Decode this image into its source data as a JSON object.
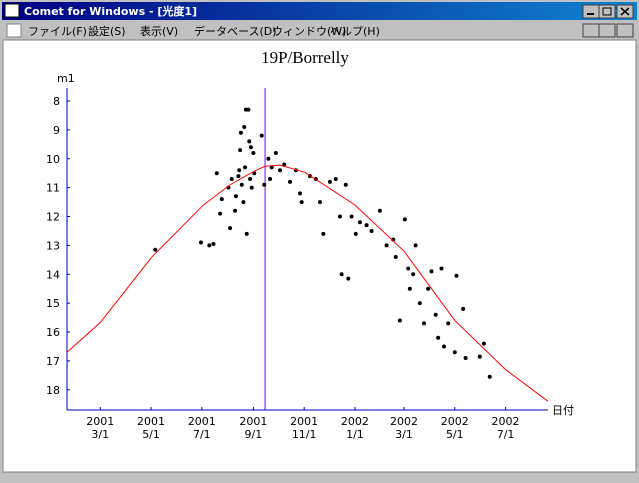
{
  "window": {
    "title": "Comet for Windows - [光度1]",
    "menu": [
      "ファイル(F)",
      "設定(S)",
      "表示(V)",
      "データベース(D)",
      "ウィンドウ(W)",
      "ヘルプ(H)"
    ]
  },
  "chart_data": {
    "type": "scatter",
    "title": "19P/Borrelly",
    "y_label": "m1",
    "x_label": "日付",
    "xlim": [
      "2001-01-20",
      "2002-08-21"
    ],
    "ylim": [
      18.7,
      7.55
    ],
    "yticks": [
      8,
      9,
      10,
      11,
      12,
      13,
      14,
      15,
      16,
      17,
      18
    ],
    "xticks": [
      {
        "value": "2001-03-01",
        "label": [
          "2001",
          "3/1"
        ]
      },
      {
        "value": "2001-05-01",
        "label": [
          "2001",
          "5/1"
        ]
      },
      {
        "value": "2001-07-01",
        "label": [
          "2001",
          "7/1"
        ]
      },
      {
        "value": "2001-09-01",
        "label": [
          "2001",
          "9/1"
        ]
      },
      {
        "value": "2001-11-01",
        "label": [
          "2001",
          "11/1"
        ]
      },
      {
        "value": "2002-01-01",
        "label": [
          "2002",
          "1/1"
        ]
      },
      {
        "value": "2002-03-01",
        "label": [
          "2002",
          "3/1"
        ]
      },
      {
        "value": "2002-05-01",
        "label": [
          "2002",
          "5/1"
        ]
      },
      {
        "value": "2002-07-01",
        "label": [
          "2002",
          "7/1"
        ]
      }
    ],
    "vline": {
      "x": "2001-09-15",
      "color": "#8000ff"
    },
    "axis_color": "#0000c0",
    "series": [
      {
        "type": "scatter",
        "color": "#000000",
        "x": [
          "2001-05-06",
          "2001-06-30",
          "2001-07-10",
          "2001-07-15",
          "2001-07-19",
          "2001-07-23",
          "2001-07-25",
          "2001-08-02",
          "2001-08-04",
          "2001-08-06",
          "2001-08-10",
          "2001-08-11",
          "2001-08-14",
          "2001-08-15",
          "2001-08-16",
          "2001-08-17",
          "2001-08-18",
          "2001-08-20",
          "2001-08-21",
          "2001-08-22",
          "2001-08-23",
          "2001-08-24",
          "2001-08-26",
          "2001-08-27",
          "2001-08-28",
          "2001-08-29",
          "2001-08-30",
          "2001-09-01",
          "2001-09-02",
          "2001-09-11",
          "2001-09-14",
          "2001-09-19",
          "2001-09-21",
          "2001-09-23",
          "2001-09-28",
          "2001-10-03",
          "2001-10-08",
          "2001-10-15",
          "2001-10-22",
          "2001-10-27",
          "2001-10-29",
          "2001-11-08",
          "2001-11-15",
          "2001-11-20",
          "2001-11-24",
          "2001-12-02",
          "2001-12-09",
          "2001-12-14",
          "2001-12-16",
          "2001-12-21",
          "2001-12-24",
          "2001-12-28",
          "2002-01-02",
          "2002-01-07",
          "2002-01-15",
          "2002-01-21",
          "2002-01-31",
          "2002-02-08",
          "2002-02-16",
          "2002-02-19",
          "2002-02-24",
          "2002-03-02",
          "2002-03-06",
          "2002-03-08",
          "2002-03-12",
          "2002-03-15",
          "2002-03-20",
          "2002-03-25",
          "2002-03-30",
          "2002-04-03",
          "2002-04-08",
          "2002-04-11",
          "2002-04-15",
          "2002-04-18",
          "2002-04-23",
          "2002-05-01",
          "2002-05-03",
          "2002-05-11",
          "2002-05-14",
          "2002-05-31",
          "2002-06-05",
          "2002-06-12"
        ],
        "values": [
          13.15,
          12.9,
          13.0,
          12.95,
          10.5,
          11.9,
          11.4,
          11.0,
          12.4,
          10.7,
          11.8,
          11.3,
          10.6,
          10.4,
          9.7,
          9.1,
          10.9,
          11.5,
          8.9,
          10.3,
          8.3,
          12.6,
          8.3,
          9.4,
          10.7,
          9.6,
          11.0,
          9.8,
          10.5,
          9.2,
          10.9,
          10.0,
          10.7,
          10.3,
          9.8,
          10.4,
          10.2,
          10.8,
          10.4,
          11.2,
          11.5,
          10.6,
          10.7,
          11.5,
          12.6,
          10.8,
          10.7,
          12.0,
          14.0,
          10.9,
          14.15,
          12.0,
          12.6,
          12.2,
          12.3,
          12.5,
          11.8,
          13.0,
          12.8,
          13.4,
          15.6,
          12.1,
          13.8,
          14.5,
          14.0,
          13.0,
          15.0,
          15.7,
          14.5,
          13.9,
          15.4,
          16.2,
          13.8,
          16.5,
          15.7,
          16.7,
          14.05,
          15.2,
          16.9,
          16.85,
          16.4,
          17.55
        ]
      },
      {
        "type": "line",
        "color": "#ff0000",
        "x": [
          "2001-01-20",
          "2001-03-01",
          "2001-05-02",
          "2001-07-03",
          "2001-08-04",
          "2001-09-02",
          "2001-09-15",
          "2001-10-03",
          "2001-11-02",
          "2002-01-01",
          "2002-03-01",
          "2002-05-01",
          "2002-07-01",
          "2002-08-21"
        ],
        "values": [
          16.7,
          15.67,
          13.4,
          11.6,
          10.9,
          10.43,
          10.26,
          10.22,
          10.47,
          11.6,
          13.2,
          15.6,
          17.3,
          18.4
        ]
      }
    ]
  }
}
